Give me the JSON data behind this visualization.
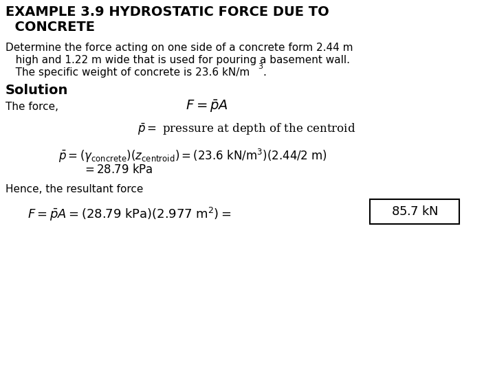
{
  "bg_color": "#ffffff",
  "text_color": "#000000",
  "title1": "EXAMPLE 3.9 HYDROSTATIC FORCE DUE TO",
  "title2": "  CONCRETE",
  "prob1": "Determine the force acting on one side of a concrete form 2.44 m",
  "prob2": "   high and 1.22 m wide that is used for pouring a basement wall.",
  "prob3": "   The specific weight of concrete is 23.6 kN/m",
  "prob3_sup": "3",
  "prob3_dot": ".",
  "sol_label": "Solution",
  "force_label": "The force,",
  "eq1": "$F = \\bar{p}A$",
  "eq2": "$\\bar{p} = $ pressure at depth of the centroid",
  "eq3": "$\\bar{p} = (\\gamma_{\\mathrm{concrete}})(z_{\\mathrm{centroid}}) = (23.6\\ \\mathrm{kN/m^3})(2.44/2\\ \\mathrm{m})$",
  "eq4": "$= 28.79\\ \\mathrm{kPa}$",
  "hence": "Hence, the resultant force",
  "eq5": "$F = \\bar{p}A = (28.79\\ \\mathrm{kPa})(2.977\\ \\mathrm{m^2}) = $",
  "eq5b": "$85.7\\ \\mathrm{kN}$",
  "title_fs": 14,
  "body_fs": 11,
  "sol_fs": 14,
  "math_fs": 12
}
